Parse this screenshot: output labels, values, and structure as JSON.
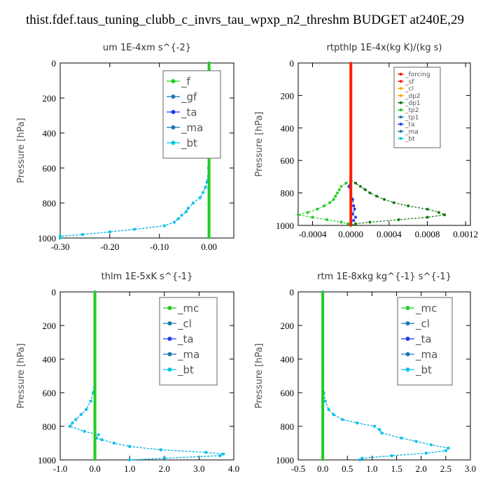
{
  "figure_title": "thist.fdef.taus_tuning_clubb_c_invrs_tau_wpxp_n2_threshm  BUDGET at240E,29",
  "colors": {
    "green": "#22cc22",
    "blue": "#1a3ee6",
    "cyan": "#00c8e6",
    "red": "#ff1a00",
    "orange": "#ffaa00",
    "dkgreen": "#117711",
    "steel": "#1a78b4"
  },
  "chart_data": [
    {
      "id": "um",
      "type": "line",
      "title": "um   1E-4xm  s^{-2}",
      "ylabel": "Pressure  [hPa]",
      "xlim": [
        -0.3,
        0.05
      ],
      "ylim": [
        1000,
        0
      ],
      "xticks": [
        "-0.30",
        "-0.20",
        "-0.10",
        "0.00"
      ],
      "xtick_values": [
        -0.3,
        -0.2,
        -0.1,
        0.0
      ],
      "yticks": [
        "0",
        "200",
        "400",
        "600",
        "800",
        "1000"
      ],
      "ytick_values": [
        0,
        200,
        400,
        600,
        800,
        1000
      ],
      "legend": [
        "_f",
        "_gf",
        "_ta",
        "_ma",
        "_bt"
      ],
      "series": [
        {
          "name": "_ta",
          "color": "blue",
          "y": [
            0,
            300,
            600,
            680,
            710,
            740,
            770,
            800,
            830,
            850,
            870,
            890,
            910,
            930,
            950,
            965,
            980,
            990,
            1000
          ],
          "x": [
            0.0,
            0.0,
            -0.001,
            -0.004,
            -0.007,
            -0.012,
            -0.018,
            -0.032,
            -0.042,
            -0.046,
            -0.055,
            -0.062,
            -0.07,
            -0.09,
            -0.15,
            -0.2,
            -0.255,
            -0.3,
            -0.3
          ]
        },
        {
          "name": "_bt",
          "color": "cyan",
          "y": [
            0,
            300,
            600,
            680,
            710,
            740,
            770,
            800,
            830,
            850,
            870,
            890,
            910,
            930,
            950,
            965,
            980,
            990,
            1000
          ],
          "x": [
            0.0,
            0.0,
            -0.001,
            -0.004,
            -0.007,
            -0.012,
            -0.018,
            -0.032,
            -0.042,
            -0.046,
            -0.055,
            -0.062,
            -0.07,
            -0.09,
            -0.15,
            -0.2,
            -0.255,
            -0.3,
            -0.3
          ]
        },
        {
          "name": "_f",
          "color": "green",
          "y": [
            0,
            100,
            200,
            300,
            400,
            500,
            600,
            700,
            800,
            900,
            1000
          ],
          "x": [
            0,
            0,
            0,
            0,
            0,
            0,
            0,
            0,
            0,
            0,
            0
          ]
        }
      ]
    },
    {
      "id": "rtpthlp",
      "type": "line",
      "title": "rtpthlp   1E-4x(kg K)/(kg s)",
      "ylabel": "Pressure  [hPa]",
      "xlim": [
        -0.00055,
        0.00125
      ],
      "ylim": [
        1000,
        0
      ],
      "xticks": [
        "-0.0004",
        "0.0000",
        "0.0004",
        "0.0008",
        "0.0012"
      ],
      "xtick_values": [
        -0.0004,
        0.0,
        0.0004,
        0.0008,
        0.0012
      ],
      "yticks": [
        "0",
        "200",
        "400",
        "600",
        "800",
        "1000"
      ],
      "ytick_values": [
        0,
        200,
        400,
        600,
        800,
        1000
      ],
      "legend": [
        "_forcing",
        "_sf",
        "_cl",
        "_dp2",
        "_dp1",
        "_tp2",
        "_tp1",
        "_ta",
        "_ma",
        "_bt"
      ],
      "series": [
        {
          "name": "_dp1",
          "color": "dkgreen",
          "y": [
            720,
            740,
            760,
            780,
            800,
            820,
            840,
            860,
            880,
            900,
            920,
            935,
            950,
            965,
            980,
            990,
            1000
          ],
          "x": [
            0.0,
            5e-05,
            0.0001,
            0.00015,
            0.0002,
            0.00027,
            0.00035,
            0.00045,
            0.0006,
            0.0008,
            0.00092,
            0.00098,
            0.0008,
            0.0005,
            0.0002,
            5e-05,
            0.0
          ]
        },
        {
          "name": "_tp2",
          "color": "green",
          "y": [
            720,
            740,
            760,
            780,
            800,
            820,
            840,
            860,
            880,
            900,
            920,
            935,
            950,
            965,
            980,
            990,
            1000
          ],
          "x": [
            0.0,
            -5e-05,
            -0.0001,
            -0.00012,
            -0.00014,
            -0.00016,
            -0.00018,
            -0.00022,
            -0.00028,
            -0.00035,
            -0.00045,
            -0.00055,
            -0.0004,
            -0.00025,
            -0.0001,
            -3e-05,
            0.0
          ]
        },
        {
          "name": "_ta",
          "color": "blue",
          "y": [
            700,
            760,
            800,
            840,
            880,
            900,
            930,
            950,
            970,
            990
          ],
          "x": [
            0.0,
            -2e-05,
            0.0,
            2e-05,
            3e-05,
            4e-05,
            2e-05,
            5e-05,
            3e-05,
            0.0
          ]
        },
        {
          "name": "_forcing",
          "color": "red",
          "y": [
            0,
            100,
            200,
            300,
            400,
            500,
            600,
            700,
            800,
            900,
            1000
          ],
          "x": [
            0,
            0,
            0,
            0,
            0,
            0,
            0,
            0,
            0,
            0,
            0
          ]
        }
      ]
    },
    {
      "id": "thlm",
      "type": "line",
      "title": "thlm   1E-5xK  s^{-1}",
      "ylabel": "Pressure  [hPa]",
      "xlim": [
        -1.0,
        4.0
      ],
      "ylim": [
        1000,
        0
      ],
      "xticks": [
        "-1.0",
        "0.0",
        "1.0",
        "2.0",
        "3.0",
        "4.0"
      ],
      "xtick_values": [
        -1.0,
        0.0,
        1.0,
        2.0,
        3.0,
        4.0
      ],
      "yticks": [
        "0",
        "200",
        "400",
        "600",
        "800",
        "1000"
      ],
      "ytick_values": [
        0,
        200,
        400,
        600,
        800,
        1000
      ],
      "legend": [
        "_mc",
        "_cl",
        "_ta",
        "_ma",
        "_bt"
      ],
      "series": [
        {
          "name": "_ta",
          "color": "blue",
          "y": [
            0,
            500,
            600,
            650,
            700,
            730,
            760,
            780,
            800,
            830,
            850,
            870,
            880,
            900,
            920,
            940,
            955,
            965,
            975,
            990,
            1000
          ],
          "x": [
            0.0,
            0.0,
            -0.05,
            -0.12,
            -0.25,
            -0.4,
            -0.55,
            -0.65,
            -0.72,
            -0.3,
            0.1,
            0.05,
            0.2,
            0.55,
            1.0,
            1.9,
            3.2,
            3.7,
            3.6,
            2.0,
            1.0
          ]
        },
        {
          "name": "_bt",
          "color": "cyan",
          "y": [
            0,
            500,
            600,
            650,
            700,
            730,
            760,
            780,
            800,
            830,
            850,
            870,
            880,
            900,
            920,
            940,
            955,
            965,
            975,
            990,
            1000
          ],
          "x": [
            0.0,
            0.0,
            -0.05,
            -0.12,
            -0.25,
            -0.4,
            -0.55,
            -0.65,
            -0.72,
            -0.3,
            0.1,
            0.05,
            0.2,
            0.55,
            1.0,
            1.9,
            3.2,
            3.7,
            3.6,
            2.0,
            1.0
          ]
        },
        {
          "name": "_mc",
          "color": "green",
          "y": [
            0,
            100,
            200,
            300,
            400,
            500,
            600,
            700,
            800,
            900,
            1000
          ],
          "x": [
            0,
            0,
            0,
            0,
            0,
            0,
            0,
            0,
            0,
            0,
            0
          ]
        }
      ]
    },
    {
      "id": "rtm",
      "type": "line",
      "title": "rtm   1E-8xkg  kg^{-1}  s^{-1}",
      "ylabel": "Pressure  [hPa]",
      "xlim": [
        -0.5,
        3.0
      ],
      "ylim": [
        1000,
        0
      ],
      "xticks": [
        "-0.5",
        "0.0",
        "0.5",
        "1.0",
        "1.5",
        "2.0",
        "2.5",
        "3.0"
      ],
      "xtick_values": [
        -0.5,
        0.0,
        0.5,
        1.0,
        1.5,
        2.0,
        2.5,
        3.0
      ],
      "yticks": [
        "0",
        "200",
        "400",
        "600",
        "800",
        "1000"
      ],
      "ytick_values": [
        0,
        200,
        400,
        600,
        800,
        1000
      ],
      "legend": [
        "_mc",
        "_cl",
        "_ta",
        "_ma",
        "_bt"
      ],
      "series": [
        {
          "name": "_ta",
          "color": "blue",
          "y": [
            0,
            500,
            600,
            650,
            700,
            730,
            760,
            780,
            800,
            820,
            840,
            870,
            890,
            910,
            930,
            945,
            960,
            975,
            990,
            1000
          ],
          "x": [
            0.0,
            0.0,
            0.02,
            0.05,
            0.12,
            0.22,
            0.4,
            0.7,
            1.05,
            1.15,
            1.2,
            1.6,
            1.9,
            2.2,
            2.55,
            2.5,
            2.1,
            1.4,
            0.8,
            0.75
          ]
        },
        {
          "name": "_bt",
          "color": "cyan",
          "y": [
            0,
            500,
            600,
            650,
            700,
            730,
            760,
            780,
            800,
            820,
            840,
            870,
            890,
            910,
            930,
            945,
            960,
            975,
            990,
            1000
          ],
          "x": [
            0.0,
            0.0,
            0.02,
            0.05,
            0.12,
            0.22,
            0.4,
            0.7,
            1.05,
            1.15,
            1.2,
            1.6,
            1.9,
            2.2,
            2.55,
            2.5,
            2.1,
            1.4,
            0.8,
            0.75
          ]
        },
        {
          "name": "_mc",
          "color": "green",
          "y": [
            0,
            100,
            200,
            300,
            400,
            500,
            600,
            700,
            800,
            900,
            1000
          ],
          "x": [
            0,
            0,
            0,
            0,
            0,
            0,
            0,
            0,
            0,
            0,
            0
          ]
        }
      ]
    }
  ]
}
